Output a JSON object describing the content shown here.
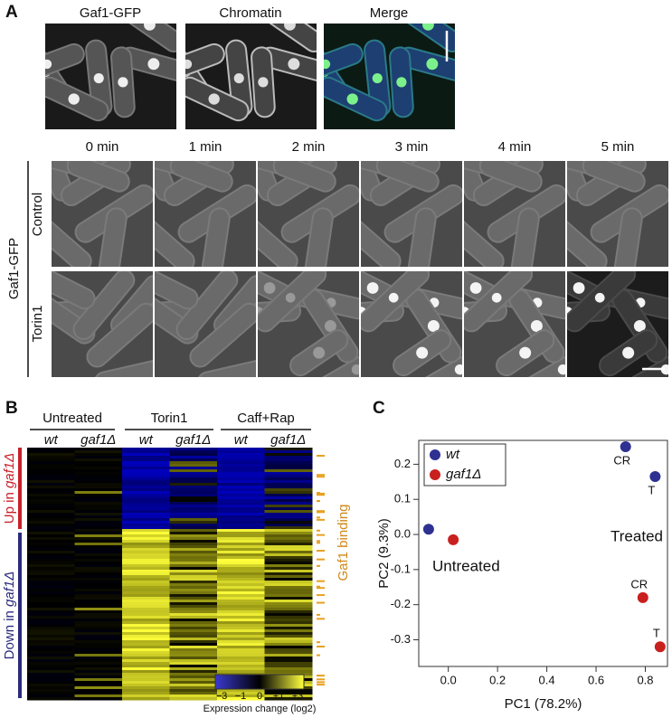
{
  "panel_a": {
    "label": "A",
    "image_titles": [
      "Gaf1-GFP",
      "Chromatin",
      "Merge"
    ],
    "timepoints": [
      "0 min",
      "1 min",
      "2 min",
      "3 min",
      "4 min",
      "5 min"
    ],
    "row_labels": [
      "Control",
      "Torin1"
    ],
    "group_label": "Gaf1-GFP"
  },
  "panel_b": {
    "label": "B",
    "groups": [
      "Untreated",
      "Torin1",
      "Caff+Rap"
    ],
    "strains": [
      "wt",
      "gaf1Δ",
      "wt",
      "gaf1Δ",
      "wt",
      "gaf1Δ"
    ],
    "row_groups": [
      {
        "prefix": "Up in ",
        "strain": "gaf1Δ",
        "color": "#c8202a"
      },
      {
        "prefix": "Down in ",
        "strain": "gaf1Δ",
        "color": "#2b2a7c"
      }
    ],
    "binding_label": "Gaf1 binding",
    "colorbar": {
      "ticks": [
        "−3",
        "−1",
        "0",
        "+1",
        "+3"
      ],
      "label": "Expression change (log2)"
    }
  },
  "panel_c": {
    "label": "C"
  },
  "chart_data": {
    "type": "scatter",
    "x_label": "PC1 (78.2%)",
    "y_label": "PC2 (9.3%)",
    "xlim": [
      -0.12,
      0.89
    ],
    "ylim": [
      -0.376,
      0.268
    ],
    "xticks": [
      {
        "value": 0,
        "label": "0.0"
      },
      0.2,
      0.4,
      0.6,
      0.8
    ],
    "yticks": [
      0.2,
      0.1,
      {
        "value": 0,
        "label": "0.0"
      },
      -0.1,
      -0.2,
      -0.3
    ],
    "legend": "upper left",
    "series": [
      {
        "name": "wt",
        "color": "#2e3192",
        "x": [
          -0.08,
          0.72,
          0.84
        ],
        "values": [
          0.015,
          0.25,
          0.165
        ],
        "point_labels": [
          null,
          "CR",
          "T"
        ]
      },
      {
        "name": "gaf1Δ",
        "color": "#c8201e",
        "x": [
          0.02,
          0.79,
          0.86
        ],
        "values": [
          -0.015,
          -0.18,
          -0.32
        ],
        "point_labels": [
          null,
          "CR",
          "T"
        ]
      }
    ],
    "annotations": [
      "Untreated",
      "Treated"
    ]
  }
}
